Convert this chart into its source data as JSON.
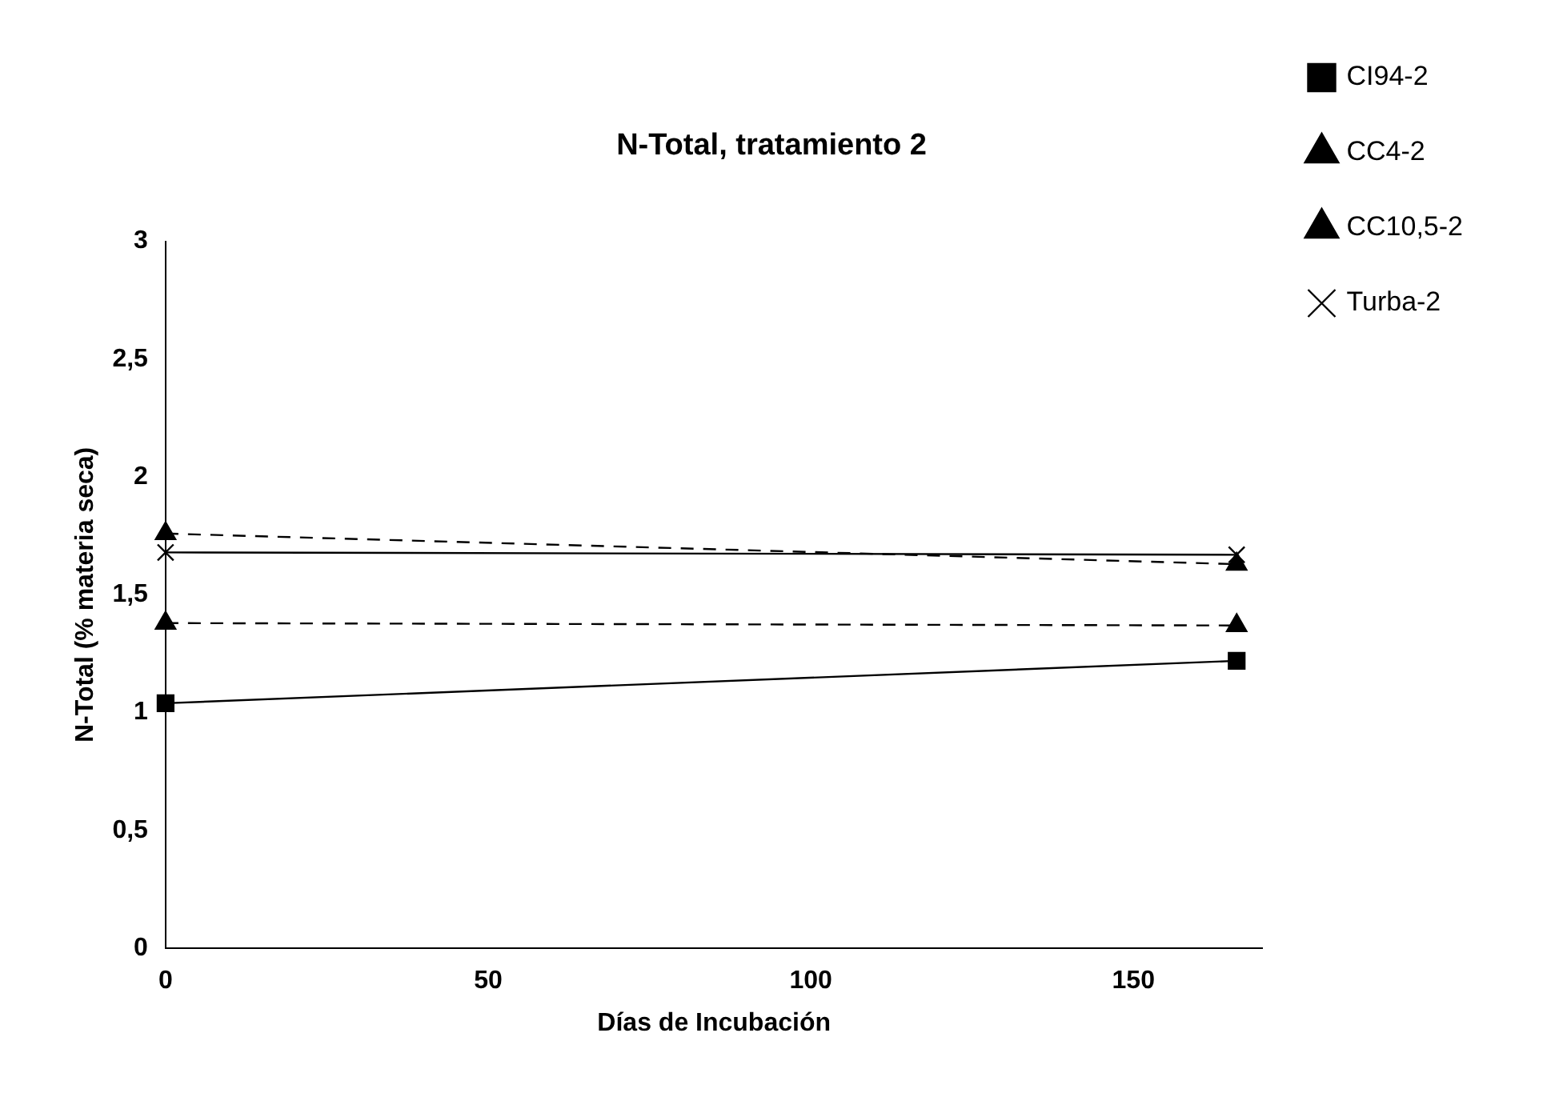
{
  "chart_data": {
    "type": "line",
    "title": "N-Total, tratamiento 2",
    "xlabel": "Días de Incubación",
    "ylabel": "N-Total (% materia seca)",
    "x": [
      0,
      166
    ],
    "series": [
      {
        "name": "CI94-2",
        "color": "#000000",
        "values": [
          1.04,
          1.22
        ],
        "marker": "square",
        "line_style": "solid"
      },
      {
        "name": "CC4-2",
        "color": "#000000",
        "values": [
          1.38,
          1.37
        ],
        "marker": "triangle",
        "line_style": "dashed"
      },
      {
        "name": "CC10,5-2",
        "color": "#000000",
        "values": [
          1.76,
          1.63
        ],
        "marker": "triangle",
        "line_style": "dashed"
      },
      {
        "name": "Turba-2",
        "color": "#000000",
        "values": [
          1.68,
          1.67
        ],
        "marker": "cross",
        "line_style": "solid"
      }
    ],
    "xlim": [
      0,
      170
    ],
    "xticks": [
      0,
      50,
      100,
      150
    ],
    "ylim": [
      0,
      3
    ],
    "yticks": [
      0,
      {
        "value": 0.5,
        "label": "0,5"
      },
      1,
      {
        "value": 1.5,
        "label": "1,5"
      },
      2,
      {
        "value": 2.5,
        "label": "2,5"
      },
      3
    ],
    "grid": false,
    "legend": "top right"
  }
}
